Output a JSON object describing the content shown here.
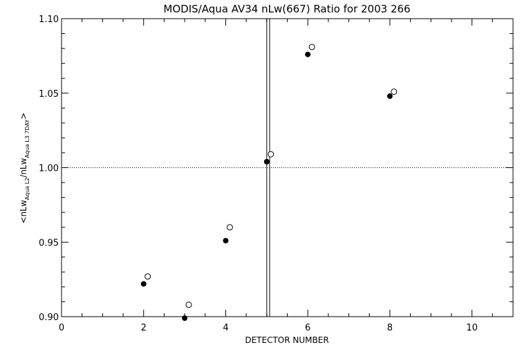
{
  "chart_data": {
    "type": "scatter",
    "title": "MODIS/Aqua AV34 nLw(667) Ratio for 2003 266",
    "xlabel": "DETECTOR NUMBER",
    "ylabel": {
      "open": "<nLw",
      "sub1": "Aqua L2",
      "slash": "/nLw",
      "sub2": "Aqua L3 7DAY",
      "close": ">"
    },
    "xlim": [
      0,
      11
    ],
    "ylim": [
      0.9,
      1.1
    ],
    "x_ticks": [
      0,
      2,
      4,
      6,
      8,
      10
    ],
    "x_tick_labels": [
      "0",
      "2",
      "4",
      "6",
      "8",
      "10"
    ],
    "y_ticks": [
      0.9,
      0.95,
      1.0,
      1.05,
      1.1
    ],
    "y_tick_labels": [
      "0.90",
      "0.95",
      "1.00",
      "1.05",
      "1.10"
    ],
    "reference_line_y": 1.0,
    "vertical_lines_x": [
      5.0,
      5.07
    ],
    "series": [
      {
        "marker": "filled-circle",
        "x": [
          2,
          3,
          4,
          5,
          6,
          8
        ],
        "y": [
          0.922,
          0.899,
          0.951,
          1.004,
          1.076,
          1.048
        ]
      },
      {
        "marker": "open-circle",
        "x": [
          2.1,
          3.1,
          4.1,
          5.1,
          6.1,
          8.1
        ],
        "y": [
          0.927,
          0.908,
          0.96,
          1.009,
          1.081,
          1.051
        ]
      }
    ],
    "grid": false,
    "legend": "none"
  }
}
